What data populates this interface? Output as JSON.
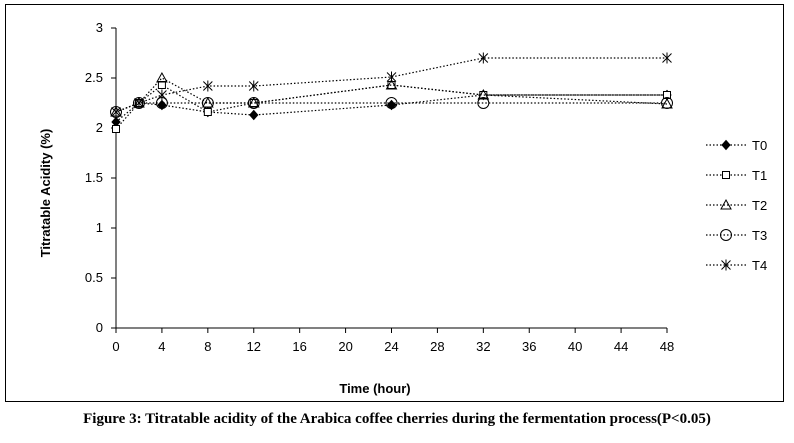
{
  "caption": "Figure 3: Titratable acidity of the Arabica coffee cherries during the fermentation process(P<0.05)",
  "chart_data": {
    "type": "line",
    "title": "",
    "xlabel": "Time (hour)",
    "ylabel": "Titratable Acidity (%)",
    "xlim": [
      0,
      48
    ],
    "ylim": [
      0,
      3
    ],
    "x_ticks": [
      0,
      4,
      8,
      12,
      16,
      20,
      24,
      28,
      32,
      36,
      40,
      44,
      48
    ],
    "x_tick_labels": [
      "0",
      "4",
      "8",
      "12",
      "16",
      "20",
      "24",
      "28",
      "32",
      "36",
      "40",
      "44",
      "48"
    ],
    "y_ticks": [
      0,
      0.5,
      1,
      1.5,
      2,
      2.5,
      3
    ],
    "y_tick_labels": [
      "0",
      "0.5",
      "1",
      "1.5",
      "2",
      "2.5",
      "3"
    ],
    "grid": false,
    "legend_position": "right",
    "x": [
      0,
      2,
      4,
      8,
      12,
      24,
      32,
      48
    ],
    "series": [
      {
        "name": "T0",
        "marker": "diamond-filled",
        "values": [
          2.06,
          2.25,
          2.23,
          2.16,
          2.13,
          2.23,
          2.33,
          2.33
        ]
      },
      {
        "name": "T1",
        "marker": "square-open",
        "values": [
          1.99,
          2.25,
          2.43,
          2.16,
          2.25,
          2.43,
          2.33,
          2.33
        ]
      },
      {
        "name": "T2",
        "marker": "triangle-open",
        "values": [
          2.16,
          2.25,
          2.5,
          2.25,
          2.25,
          2.43,
          2.33,
          2.24
        ]
      },
      {
        "name": "T3",
        "marker": "circle-open",
        "values": [
          2.16,
          2.25,
          2.25,
          2.25,
          2.25,
          2.25,
          2.25,
          2.25
        ]
      },
      {
        "name": "T4",
        "marker": "asterisk",
        "values": [
          2.16,
          2.25,
          2.33,
          2.42,
          2.42,
          2.51,
          2.7,
          2.7
        ]
      }
    ]
  }
}
